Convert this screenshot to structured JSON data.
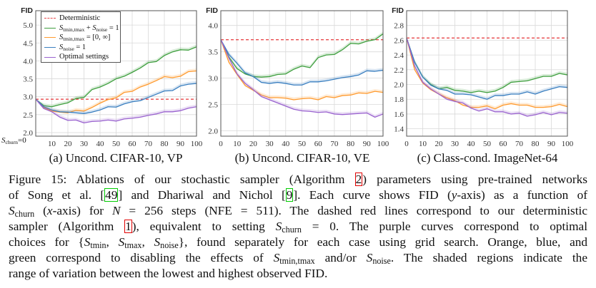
{
  "figure": {
    "colors": {
      "deterministic": "#e8474a",
      "green": "#3f9f3f",
      "orange": "#ff9a2e",
      "blue": "#3a7fc0",
      "purple": "#9a63cf",
      "grid": "#d9d9d9",
      "frame": "#555555",
      "ref_red": "#e00000",
      "ref_green": "#00cc00"
    },
    "legend": [
      {
        "color_key": "deterministic",
        "dashed": true,
        "label": [
          {
            "t": "Deterministic"
          }
        ]
      },
      {
        "color_key": "green",
        "label": [
          {
            "t": "S",
            "i": true
          },
          {
            "t": "tmin,tmax",
            "sub": true
          },
          {
            "t": " + "
          },
          {
            "t": "S",
            "i": true
          },
          {
            "t": "noise",
            "sub": true
          },
          {
            "t": " = 1"
          }
        ]
      },
      {
        "color_key": "orange",
        "label": [
          {
            "t": "S",
            "i": true
          },
          {
            "t": "tmin,tmax",
            "sub": true
          },
          {
            "t": " = [0, ∞]"
          }
        ]
      },
      {
        "color_key": "blue",
        "label": [
          {
            "t": "S",
            "i": true
          },
          {
            "t": "noise",
            "sub": true
          },
          {
            "t": " = 1"
          }
        ]
      },
      {
        "color_key": "purple",
        "label": [
          {
            "t": "Optimal settings"
          }
        ]
      }
    ],
    "xlabel": [
      {
        "t": "S",
        "i": true
      },
      {
        "t": "churn",
        "sub": true
      },
      {
        "t": "=0"
      }
    ],
    "caption_lines": [
      [
        {
          "t": "Figure 15: Ablations of our stochastic sampler (Algorithm "
        },
        {
          "t": "2",
          "ref": "ref_red"
        },
        {
          "t": ") parameters using pre-trained networks"
        }
      ],
      [
        {
          "t": "of Song et al. ["
        },
        {
          "t": "49",
          "ref": "ref_green"
        },
        {
          "t": "] and Dhariwal and Nichol ["
        },
        {
          "t": "9",
          "ref": "ref_green"
        },
        {
          "t": "]. Each curve shows FID ("
        },
        {
          "t": "y",
          "i": true
        },
        {
          "t": "-axis) as a function of"
        }
      ],
      [
        {
          "t": "S",
          "i": true
        },
        {
          "t": "churn",
          "sub": true
        },
        {
          "t": " ("
        },
        {
          "t": "x",
          "i": true
        },
        {
          "t": "-axis) for "
        },
        {
          "t": "N",
          "i": true
        },
        {
          "t": " = 256 steps (NFE = 511). The dashed red lines correspond to our deterministic"
        }
      ],
      [
        {
          "t": "sampler (Algorithm "
        },
        {
          "t": "1",
          "ref": "ref_red"
        },
        {
          "t": "), equivalent to setting "
        },
        {
          "t": "S",
          "i": true
        },
        {
          "t": "churn",
          "sub": true
        },
        {
          "t": " = 0. The purple curves correspond to optimal"
        }
      ],
      [
        {
          "t": "choices for {"
        },
        {
          "t": "S",
          "i": true
        },
        {
          "t": "tmin",
          "sub": true
        },
        {
          "t": ", "
        },
        {
          "t": "S",
          "i": true
        },
        {
          "t": "tmax",
          "sub": true
        },
        {
          "t": ", "
        },
        {
          "t": "S",
          "i": true
        },
        {
          "t": "noise",
          "sub": true
        },
        {
          "t": "}, found separately for each case using grid search. Orange, blue, and"
        }
      ],
      [
        {
          "t": "green correspond to disabling the effects of "
        },
        {
          "t": "S",
          "i": true
        },
        {
          "t": "tmin,tmax",
          "sub": true
        },
        {
          "t": " and/or "
        },
        {
          "t": "S",
          "i": true
        },
        {
          "t": "noise",
          "sub": true
        },
        {
          "t": ". The shaded regions indicate the"
        }
      ],
      [
        {
          "t": "range of variation between the lowest and highest observed FID."
        }
      ]
    ]
  },
  "chart_data": [
    {
      "type": "line",
      "subtitle": "(a) Uncond. CIFAR-10, VP",
      "ylabel": "FID",
      "xlabel": "S_churn",
      "x": [
        0,
        5,
        10,
        15,
        20,
        25,
        30,
        35,
        40,
        45,
        50,
        55,
        60,
        65,
        70,
        75,
        80,
        85,
        90,
        95,
        100
      ],
      "xticks": [
        0,
        10,
        20,
        30,
        40,
        50,
        60,
        70,
        80,
        90,
        100
      ],
      "yticks": [
        "2.0",
        "2.5",
        "3.0",
        "3.5",
        "4.0",
        "4.5",
        "5.0"
      ],
      "ylim": [
        1.9,
        5.4
      ],
      "xlim": [
        0,
        100
      ],
      "grid": true,
      "legend": "top-left",
      "deterministic": 2.93,
      "series": [
        {
          "name": "S_tmin,tmax + S_noise = 1",
          "color_key": "green",
          "values": [
            2.93,
            2.75,
            2.72,
            2.78,
            2.83,
            2.95,
            2.98,
            3.2,
            3.27,
            3.37,
            3.5,
            3.57,
            3.68,
            3.8,
            3.95,
            3.98,
            4.15,
            4.25,
            4.31,
            4.3,
            4.39
          ]
        },
        {
          "name": "S_tmin,tmax = [0, ∞]",
          "color_key": "orange",
          "values": [
            2.93,
            2.7,
            2.6,
            2.57,
            2.55,
            2.62,
            2.6,
            2.7,
            2.82,
            2.92,
            2.97,
            3.12,
            3.15,
            3.27,
            3.35,
            3.45,
            3.56,
            3.53,
            3.57,
            3.7,
            3.72
          ]
        },
        {
          "name": "S_noise = 1",
          "color_key": "blue",
          "values": [
            2.93,
            2.72,
            2.63,
            2.58,
            2.57,
            2.55,
            2.53,
            2.57,
            2.63,
            2.72,
            2.71,
            2.8,
            2.86,
            2.89,
            2.98,
            3.07,
            3.16,
            3.17,
            3.3,
            3.35,
            3.37
          ]
        },
        {
          "name": "Optimal settings",
          "color_key": "purple",
          "values": [
            2.93,
            2.67,
            2.58,
            2.43,
            2.34,
            2.35,
            2.27,
            2.31,
            2.32,
            2.35,
            2.32,
            2.38,
            2.4,
            2.43,
            2.48,
            2.52,
            2.58,
            2.58,
            2.61,
            2.68,
            2.72
          ]
        }
      ]
    },
    {
      "type": "line",
      "subtitle": "(b) Uncond. CIFAR-10, VE",
      "ylabel": "FID",
      "x": [
        0,
        5,
        10,
        15,
        20,
        25,
        30,
        35,
        40,
        45,
        50,
        55,
        60,
        65,
        70,
        75,
        80,
        85,
        90,
        95,
        100
      ],
      "xticks": [
        0,
        10,
        20,
        30,
        40,
        50,
        60,
        70,
        80,
        90,
        100
      ],
      "yticks": [
        "2.0",
        "2.5",
        "3.0",
        "3.5",
        "4.0"
      ],
      "ylim": [
        1.9,
        4.28
      ],
      "xlim": [
        0,
        100
      ],
      "grid": true,
      "deterministic": 3.73,
      "series": [
        {
          "name": "S_tmin,tmax + S_noise = 1",
          "color_key": "green",
          "values": [
            3.73,
            3.4,
            3.18,
            3.08,
            3.03,
            3.02,
            3.03,
            3.07,
            3.08,
            3.17,
            3.23,
            3.2,
            3.39,
            3.44,
            3.45,
            3.54,
            3.66,
            3.65,
            3.7,
            3.73,
            3.84
          ]
        },
        {
          "name": "S_noise = 1",
          "color_key": "blue",
          "values": [
            3.73,
            3.45,
            3.28,
            3.1,
            3.03,
            2.92,
            2.9,
            2.92,
            2.9,
            2.87,
            2.87,
            2.93,
            2.93,
            2.95,
            2.98,
            3.01,
            3.03,
            3.06,
            3.14,
            3.13,
            3.15
          ]
        },
        {
          "name": "S_tmin,tmax = [0, ∞]",
          "color_key": "orange",
          "values": [
            3.73,
            3.3,
            3.07,
            2.86,
            2.77,
            2.68,
            2.63,
            2.63,
            2.62,
            2.59,
            2.61,
            2.62,
            2.59,
            2.65,
            2.63,
            2.67,
            2.68,
            2.72,
            2.71,
            2.75,
            2.73
          ]
        },
        {
          "name": "Optimal settings",
          "color_key": "purple",
          "values": [
            3.73,
            3.38,
            3.08,
            2.9,
            2.78,
            2.65,
            2.59,
            2.53,
            2.47,
            2.41,
            2.38,
            2.37,
            2.35,
            2.36,
            2.32,
            2.31,
            2.32,
            2.33,
            2.34,
            2.26,
            2.32
          ]
        }
      ]
    },
    {
      "type": "line",
      "subtitle": "(c) Class-cond. ImageNet-64",
      "ylabel": "FID",
      "x": [
        0,
        5,
        10,
        15,
        20,
        25,
        30,
        35,
        40,
        45,
        50,
        55,
        60,
        65,
        70,
        75,
        80,
        85,
        90,
        95,
        100
      ],
      "xticks": [
        0,
        10,
        20,
        30,
        40,
        50,
        60,
        70,
        80,
        90,
        100
      ],
      "yticks": [
        "1.4",
        "1.6",
        "1.8",
        "2.0",
        "2.2",
        "2.4",
        "2.6",
        "2.8"
      ],
      "ylim": [
        1.3,
        3.0
      ],
      "xlim": [
        0,
        100
      ],
      "grid": true,
      "deterministic": 2.63,
      "series": [
        {
          "name": "S_tmin,tmax + S_noise = 1",
          "color_key": "green",
          "values": [
            2.63,
            2.3,
            2.1,
            2.0,
            1.94,
            1.96,
            1.92,
            1.91,
            1.89,
            1.91,
            1.89,
            1.91,
            1.96,
            2.03,
            2.04,
            2.05,
            2.08,
            2.11,
            2.11,
            2.15,
            2.13
          ]
        },
        {
          "name": "S_noise = 1",
          "color_key": "blue",
          "values": [
            2.63,
            2.3,
            2.1,
            1.99,
            1.94,
            1.92,
            1.87,
            1.87,
            1.86,
            1.83,
            1.8,
            1.85,
            1.85,
            1.87,
            1.87,
            1.9,
            1.87,
            1.91,
            1.94,
            1.97,
            1.96
          ]
        },
        {
          "name": "S_tmin,tmax = [0, ∞]",
          "color_key": "orange",
          "values": [
            2.63,
            2.2,
            2.02,
            1.93,
            1.87,
            1.82,
            1.78,
            1.72,
            1.69,
            1.69,
            1.71,
            1.67,
            1.72,
            1.74,
            1.72,
            1.72,
            1.69,
            1.69,
            1.7,
            1.73,
            1.7
          ]
        },
        {
          "name": "Optimal settings",
          "color_key": "purple",
          "values": [
            2.63,
            2.25,
            2.03,
            1.94,
            1.87,
            1.8,
            1.77,
            1.75,
            1.68,
            1.64,
            1.67,
            1.63,
            1.63,
            1.6,
            1.61,
            1.57,
            1.59,
            1.62,
            1.59,
            1.62,
            1.61
          ]
        }
      ]
    }
  ]
}
